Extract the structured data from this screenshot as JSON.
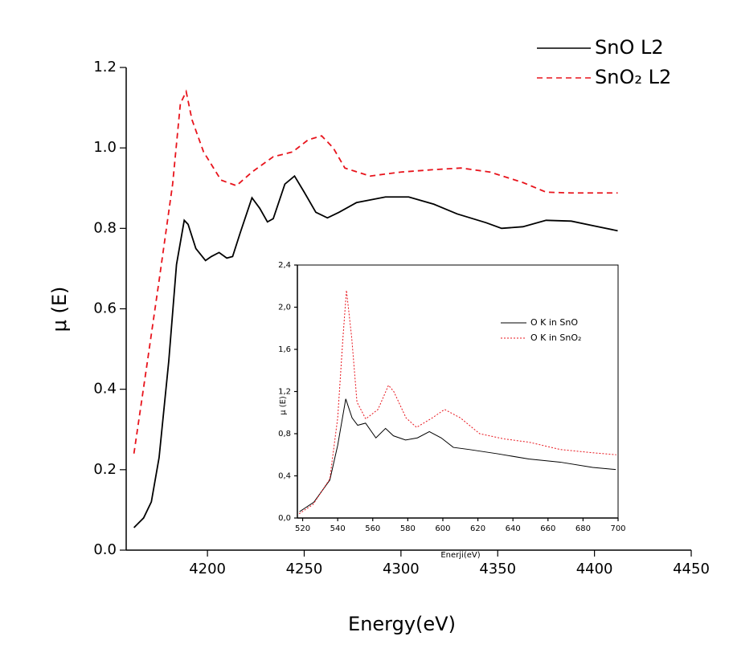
{
  "chart_data": [
    {
      "type": "line",
      "x_label": "Energy(eV)",
      "y_label": "μ (E)",
      "xlim": [
        4158,
        4450
      ],
      "ylim": [
        0,
        1.2
      ],
      "xticks": [
        4200,
        4250,
        4300,
        4350,
        4400,
        4450
      ],
      "yticks": [
        {
          "value": 0,
          "label": "0.0"
        },
        0.2,
        0.4,
        0.6,
        0.8,
        {
          "value": 1,
          "label": "1.0"
        },
        1.2
      ],
      "legend": "upper right",
      "series": [
        {
          "name": "SnO L2",
          "color": "#000000",
          "line_style": "solid",
          "x": [
            4162,
            4167,
            4171,
            4175,
            4180,
            4184,
            4188,
            4190,
            4194,
            4199,
            4202,
            4206,
            4210,
            4213,
            4217,
            4223,
            4227,
            4231,
            4234,
            4240,
            4245,
            4250,
            4256,
            4262,
            4268,
            4277,
            4292,
            4304,
            4317,
            4329,
            4344,
            4352,
            4363,
            4375,
            4388,
            4400,
            4412
          ],
          "values": [
            0.056,
            0.08,
            0.12,
            0.23,
            0.47,
            0.71,
            0.82,
            0.81,
            0.75,
            0.72,
            0.73,
            0.74,
            0.726,
            0.73,
            0.79,
            0.876,
            0.85,
            0.816,
            0.824,
            0.91,
            0.93,
            0.89,
            0.84,
            0.826,
            0.84,
            0.864,
            0.878,
            0.878,
            0.86,
            0.836,
            0.814,
            0.8,
            0.804,
            0.82,
            0.818,
            0.806,
            0.794
          ]
        },
        {
          "name": "SnO₂ L2",
          "color": "#e8141c",
          "line_style": "dashed",
          "x": [
            4162,
            4169,
            4175,
            4182,
            4186,
            4189,
            4192,
            4198,
            4207,
            4215,
            4223,
            4234,
            4244,
            4252,
            4259,
            4265,
            4271,
            4284,
            4300,
            4317,
            4331,
            4346,
            4363,
            4375,
            4388,
            4412
          ],
          "values": [
            0.24,
            0.47,
            0.67,
            0.91,
            1.11,
            1.14,
            1.07,
            0.99,
            0.92,
            0.906,
            0.94,
            0.978,
            0.99,
            1.02,
            1.03,
            1.0,
            0.95,
            0.93,
            0.94,
            0.946,
            0.95,
            0.94,
            0.914,
            0.89,
            0.888,
            0.888
          ]
        }
      ]
    },
    {
      "type": "line",
      "x_label": "Enerji(eV)",
      "y_label": "μ (E)",
      "xlim": [
        517,
        700
      ],
      "ylim": [
        0,
        2.4
      ],
      "xticks": [
        520,
        540,
        560,
        580,
        600,
        620,
        640,
        660,
        680,
        700
      ],
      "yticks": [
        {
          "value": 0,
          "label": "0,0"
        },
        {
          "value": 0.4,
          "label": "0,4"
        },
        {
          "value": 0.8,
          "label": "0,8"
        },
        {
          "value": 1.2,
          "label": "1,2"
        },
        {
          "value": 1.6,
          "label": "1,6"
        },
        {
          "value": 2,
          "label": "2,0"
        },
        {
          "value": 2.4,
          "label": "2,4"
        }
      ],
      "legend": "upper right",
      "series": [
        {
          "name": "O K in SnO",
          "color": "#000000",
          "line_style": "solid",
          "x": [
            518.2,
            526.4,
            535.5,
            540,
            544.6,
            548.2,
            551.4,
            555.9,
            561.8,
            567.3,
            571.8,
            578.7,
            585.5,
            592.3,
            599.1,
            606,
            615,
            631,
            649,
            667,
            685.5,
            698.7
          ],
          "values": [
            0.06,
            0.15,
            0.36,
            0.69,
            1.13,
            0.95,
            0.88,
            0.9,
            0.76,
            0.85,
            0.78,
            0.74,
            0.76,
            0.82,
            0.76,
            0.67,
            0.65,
            0.61,
            0.56,
            0.53,
            0.48,
            0.46
          ]
        },
        {
          "name": "O K in SnO₂",
          "color": "#e8141c",
          "line_style": "dotted",
          "x": [
            518,
            526,
            535.5,
            540,
            543,
            545,
            548,
            551,
            556,
            563,
            569,
            572,
            579,
            585,
            594,
            601,
            610,
            621,
            635,
            649,
            667,
            685,
            699
          ],
          "values": [
            0.04,
            0.13,
            0.37,
            0.95,
            1.71,
            2.16,
            1.71,
            1.1,
            0.94,
            1.03,
            1.26,
            1.2,
            0.95,
            0.86,
            0.95,
            1.03,
            0.95,
            0.8,
            0.75,
            0.72,
            0.65,
            0.62,
            0.6
          ]
        }
      ]
    }
  ]
}
